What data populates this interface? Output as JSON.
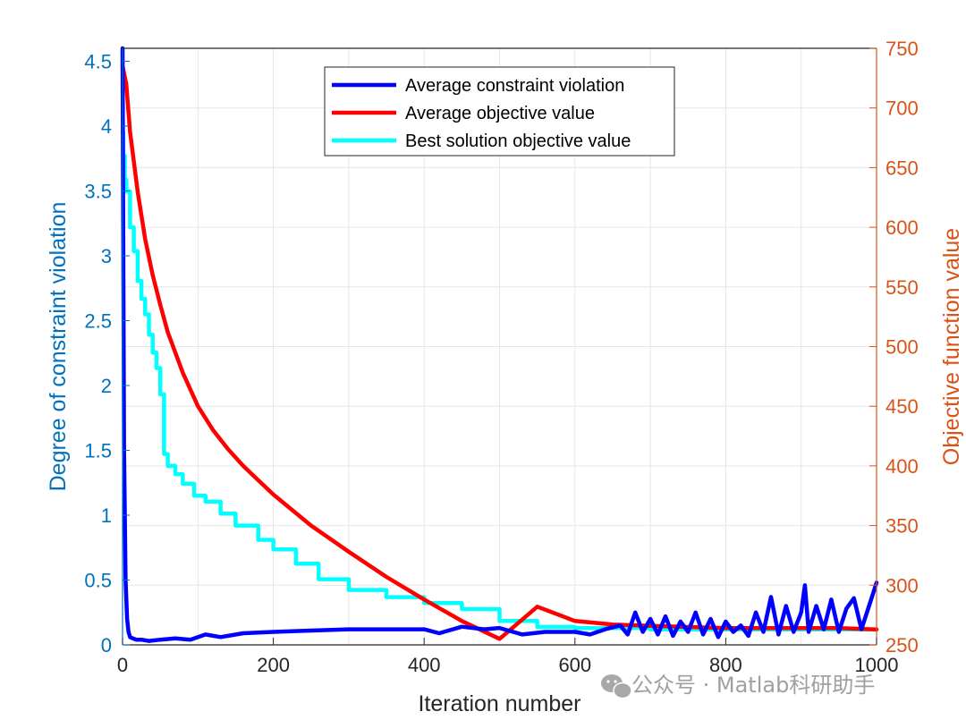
{
  "chart_data": {
    "type": "line",
    "xlabel": "Iteration number",
    "ylabel_left": "Degree of constraint violation",
    "ylabel_right": "Objective function value",
    "xlim": [
      0,
      1000
    ],
    "ylim_left": [
      0,
      4.6
    ],
    "ylim_right": [
      250,
      750
    ],
    "x_ticks": [
      "0",
      "200",
      "400",
      "600",
      "800",
      "1000"
    ],
    "y_left_ticks": [
      "0",
      "0.5",
      "1",
      "1.5",
      "2",
      "2.5",
      "3",
      "3.5",
      "4",
      "4.5"
    ],
    "y_right_ticks": [
      "250",
      "300",
      "350",
      "400",
      "450",
      "500",
      "550",
      "600",
      "650",
      "700",
      "750"
    ],
    "grid": true,
    "legend_position": "top-center",
    "colors": {
      "left_axis": "#0072BD",
      "right_axis": "#D95319",
      "violation": "#0000FF",
      "avg_objective": "#FF0000",
      "best_objective": "#00FFFF",
      "grid": "#e6e6e6"
    },
    "series": [
      {
        "name": "Average constraint violation",
        "axis": "left",
        "x": [
          0,
          2,
          4,
          6,
          8,
          10,
          14,
          18,
          25,
          35,
          50,
          70,
          90,
          110,
          130,
          160,
          200,
          250,
          300,
          350,
          400,
          420,
          450,
          480,
          500,
          530,
          560,
          600,
          620,
          640,
          660,
          670,
          680,
          690,
          700,
          710,
          720,
          730,
          740,
          750,
          760,
          770,
          780,
          790,
          800,
          810,
          820,
          830,
          840,
          850,
          860,
          870,
          880,
          890,
          900,
          905,
          910,
          920,
          930,
          940,
          950,
          960,
          970,
          980,
          990,
          1000
        ],
        "y": [
          4.6,
          1.5,
          0.5,
          0.2,
          0.1,
          0.06,
          0.05,
          0.04,
          0.04,
          0.03,
          0.04,
          0.05,
          0.04,
          0.08,
          0.06,
          0.09,
          0.1,
          0.11,
          0.12,
          0.12,
          0.12,
          0.09,
          0.14,
          0.12,
          0.13,
          0.08,
          0.1,
          0.1,
          0.08,
          0.12,
          0.15,
          0.08,
          0.25,
          0.1,
          0.2,
          0.08,
          0.22,
          0.07,
          0.18,
          0.1,
          0.25,
          0.08,
          0.2,
          0.06,
          0.18,
          0.1,
          0.15,
          0.07,
          0.25,
          0.1,
          0.37,
          0.08,
          0.3,
          0.1,
          0.25,
          0.46,
          0.1,
          0.3,
          0.12,
          0.35,
          0.1,
          0.28,
          0.36,
          0.12,
          0.3,
          0.48
        ]
      },
      {
        "name": "Average objective value",
        "axis": "right",
        "x": [
          0,
          5,
          10,
          20,
          30,
          40,
          50,
          60,
          80,
          100,
          120,
          140,
          160,
          180,
          200,
          250,
          300,
          350,
          400,
          450,
          500,
          550,
          600,
          650,
          700,
          750,
          800,
          850,
          900,
          950,
          1000
        ],
        "y": [
          735,
          720,
          680,
          630,
          590,
          560,
          535,
          512,
          478,
          450,
          430,
          414,
          400,
          388,
          376,
          350,
          328,
          307,
          288,
          270,
          255,
          282,
          270,
          267,
          266,
          265,
          264,
          264,
          264,
          264,
          263
        ]
      },
      {
        "name": "Best solution objective value",
        "axis": "right",
        "x": [
          0,
          1,
          3,
          5,
          10,
          15,
          20,
          25,
          30,
          35,
          40,
          45,
          50,
          55,
          60,
          70,
          80,
          95,
          110,
          130,
          150,
          180,
          200,
          230,
          260,
          300,
          350,
          400,
          450,
          500,
          550,
          600,
          700,
          800,
          900,
          1000
        ],
        "y": [
          680,
          660,
          640,
          630,
          600,
          580,
          555,
          540,
          527,
          510,
          495,
          482,
          460,
          410,
          400,
          393,
          385,
          375,
          370,
          360,
          350,
          338,
          330,
          318,
          305,
          296,
          290,
          285,
          280,
          270,
          265,
          264,
          263,
          263,
          263,
          263
        ]
      }
    ]
  },
  "watermark_text": "公众号 · Matlab科研助手"
}
